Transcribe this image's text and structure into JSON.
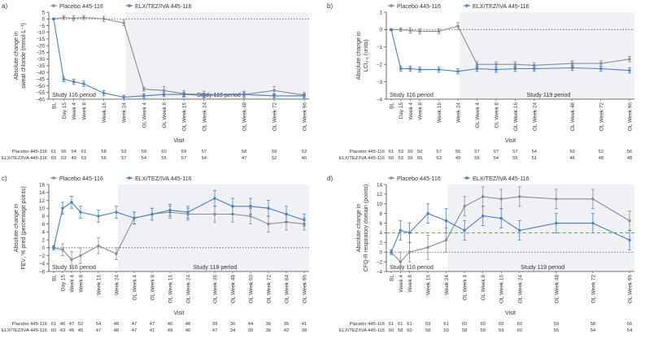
{
  "legend": {
    "placebo": "Placebo 445-116",
    "elx": "ELX/TEZ/IVA 445-116"
  },
  "colors": {
    "placebo": "#8c8c8c",
    "elx": "#4a7fc1",
    "shade": "#f0f1f5",
    "mcid": "#6aaa4a",
    "zero": "#555555"
  },
  "chart_data": [
    {
      "panel": "a)",
      "type": "line",
      "ylabel": [
        "Absolute change in",
        "sweat chloride (mmol·L⁻¹)"
      ],
      "xlabel": "Visit",
      "ylim": [
        -60,
        5
      ],
      "yticks": [
        5,
        0,
        -5,
        -10,
        -15,
        -20,
        -25,
        -30,
        -35,
        -40,
        -45,
        -50,
        -55,
        -60
      ],
      "categories": [
        "BL",
        "Day 15",
        "Week 4",
        "Week 8",
        "Week 16",
        "Week 24",
        "OL Week 4",
        "OL Week 8",
        "OL Week 16",
        "OL Week 24",
        "OL Week 48",
        "OL Week 72",
        "OL Week 96"
      ],
      "xpos": [
        0,
        1,
        2,
        3,
        5,
        7,
        9,
        11,
        13,
        15,
        19,
        22,
        25
      ],
      "xmax": 25,
      "shade_from": 7,
      "period_116": "Study 116 period",
      "period_119": "Study 119 period",
      "series": [
        {
          "key": "placebo",
          "name": "Placebo 445-116",
          "values": [
            0,
            1,
            0.5,
            1,
            0,
            -3,
            -52.5,
            -53.5,
            -56,
            -56.5,
            -56.5,
            -53.5,
            -57
          ],
          "err": [
            0.5,
            1.5,
            2,
            1.5,
            2,
            2,
            1.5,
            3,
            2.5,
            2.5,
            2.5,
            3,
            2
          ]
        },
        {
          "key": "elx",
          "name": "ELX/TEZ/IVA 445-116",
          "values": [
            0,
            -45,
            -47,
            -48.5,
            -55.5,
            -58.5,
            -57.5,
            -56.5,
            -56.5,
            -57,
            -56.5,
            -57.5,
            -57.5
          ],
          "err": [
            0.5,
            2,
            2,
            2,
            2,
            1.5,
            1.5,
            1.5,
            1.5,
            1.5,
            1.5,
            1.5,
            1.5
          ]
        }
      ],
      "n_table": {
        "rows": [
          {
            "label": "Placebo 445-116",
            "values": [
              "61",
              "56",
              "54",
              "61",
              "58",
              "53",
              "59",
              "60",
              "59",
              "57",
              "58",
              "59",
              "52"
            ]
          },
          {
            "label": "ELX/TEZ/IVA 445-116",
            "values": [
              "60",
              "53",
              "49",
              "53",
              "56",
              "57",
              "54",
              "55",
              "57",
              "54",
              "47",
              "52",
              "46"
            ]
          }
        ]
      }
    },
    {
      "panel": "b)",
      "type": "line",
      "ylabel": [
        "Absolute change in",
        "LCI₂.₅ (units)"
      ],
      "xlabel": "Visit",
      "ylim": [
        -4,
        1
      ],
      "yticks": [
        1,
        0,
        -1,
        -2,
        -3,
        -4
      ],
      "categories": [
        "BL",
        "Day 15",
        "Week 4",
        "Week 8",
        "Week 16",
        "Week 24",
        "OL Week 4",
        "OL Week 8",
        "OL Week 16",
        "OL Week 24",
        "OL Week 48",
        "OL Week 72",
        "OL Week 96"
      ],
      "xpos": [
        0,
        1,
        2,
        3,
        5,
        7,
        9,
        11,
        13,
        15,
        19,
        22,
        25
      ],
      "xmax": 25,
      "shade_from": 7,
      "period_116": "Study 116 period",
      "period_119": "Study 119 period",
      "series": [
        {
          "key": "placebo",
          "name": "Placebo 445-116",
          "values": [
            0,
            0,
            -0.05,
            -0.1,
            -0.1,
            0.2,
            -2.0,
            -2.0,
            -2.0,
            -2.05,
            -1.95,
            -1.95,
            -1.7
          ],
          "err": [
            0.05,
            0.1,
            0.15,
            0.15,
            0.15,
            0.2,
            0.15,
            0.15,
            0.15,
            0.15,
            0.15,
            0.15,
            0.15
          ]
        },
        {
          "key": "elx",
          "name": "ELX/TEZ/IVA 445-116",
          "values": [
            0,
            -2.25,
            -2.25,
            -2.3,
            -2.3,
            -2.4,
            -2.25,
            -2.3,
            -2.25,
            -2.25,
            -2.2,
            -2.25,
            -2.35
          ],
          "err": [
            0.05,
            0.15,
            0.15,
            0.15,
            0.15,
            0.15,
            0.15,
            0.15,
            0.15,
            0.15,
            0.15,
            0.15,
            0.15
          ]
        }
      ],
      "n_table": {
        "rows": [
          {
            "label": "Placebo 445-116",
            "values": [
              "61",
              "53",
              "50",
              "50",
              "57",
              "56",
              "57",
              "57",
              "57",
              "54",
              "50",
              "52",
              "56"
            ]
          },
          {
            "label": "ELX/TEZ/IVA 445-116",
            "values": [
              "60",
              "53",
              "56",
              "55",
              "53",
              "49",
              "56",
              "54",
              "55",
              "51",
              "46",
              "48",
              "48"
            ]
          }
        ]
      }
    },
    {
      "panel": "c)",
      "type": "line",
      "ylabel": [
        "Absolute change in",
        "FEV₁ % pred (percentage points)"
      ],
      "xlabel": "Visit",
      "ylim": [
        -6,
        16
      ],
      "yticks": [
        16,
        14,
        12,
        10,
        8,
        6,
        4,
        2,
        0,
        -2,
        -4,
        -6
      ],
      "categories": [
        "BL",
        "Day 15",
        "Week 4",
        "Week 8",
        "Week 16",
        "Week 24",
        "OL Week 4",
        "OL Week 8",
        "OL Week 16",
        "OL Week 24",
        "OL Week 36",
        "OL Week 48",
        "OL Week 60",
        "OL Week 72",
        "OL Week 84",
        "OL Week 96"
      ],
      "xpos": [
        0,
        1,
        2,
        3,
        5,
        7,
        9,
        11,
        13,
        15,
        18,
        20,
        22,
        24,
        26,
        28
      ],
      "xmax": 28,
      "shade_from": 7,
      "period_116": "Study 116 period",
      "period_119": "Study 119 period",
      "series": [
        {
          "key": "placebo",
          "name": "Placebo 445-116",
          "values": [
            0,
            -0.5,
            -3,
            -2,
            0.5,
            -1.5,
            7.5,
            8.5,
            9,
            8.5,
            8.5,
            8.5,
            8,
            6,
            6.5,
            6
          ],
          "err": [
            0.5,
            1.5,
            2,
            2,
            2,
            1.5,
            1.5,
            1.5,
            1.5,
            1.5,
            2,
            2,
            2,
            2,
            2,
            1.5
          ]
        },
        {
          "key": "elx",
          "name": "ELX/TEZ/IVA 445-116",
          "values": [
            0,
            10,
            11.5,
            9,
            8,
            9,
            7.5,
            8.5,
            9.5,
            9,
            12.5,
            10.5,
            10.5,
            10,
            8.5,
            7
          ],
          "err": [
            0.5,
            1.5,
            1.5,
            1.5,
            1.5,
            1.5,
            1.5,
            1.5,
            1.5,
            1.5,
            2,
            2,
            2,
            2,
            2,
            1.5
          ]
        }
      ],
      "n_table": {
        "rows": [
          {
            "label": "Placebo 445-116",
            "values": [
              "61",
              "46",
              "47",
              "52",
              "54",
              "48",
              "47",
              "47",
              "46",
              "48",
              "39",
              "36",
              "44",
              "36",
              "36",
              "41"
            ]
          },
          {
            "label": "ELX/TEZ/IVA 445-116",
            "values": [
              "60",
              "43",
              "46",
              "45",
              "47",
              "48",
              "47",
              "41",
              "49",
              "46",
              "47",
              "34",
              "39",
              "36",
              "42",
              "38"
            ]
          }
        ]
      }
    },
    {
      "panel": "d)",
      "type": "line",
      "ylabel": [
        "Absolute change in",
        "CFQ-R respiratory domain (points)"
      ],
      "xlabel": "Visit",
      "ylim": [
        -4,
        14
      ],
      "yticks": [
        14,
        12,
        10,
        8,
        6,
        4,
        2,
        0,
        -2,
        -4
      ],
      "mcid": 4,
      "categories": [
        "BL",
        "Week 4",
        "Week 8",
        "Week 16",
        "Week 24",
        "OL Week 4",
        "OL Week 8",
        "OL Week 16",
        "OL Week 24",
        "OL Week 48",
        "OL Week 72",
        "OL Week 96"
      ],
      "xpos": [
        0,
        1,
        2,
        4,
        6,
        8,
        10,
        12,
        14,
        18,
        22,
        26
      ],
      "xmax": 26,
      "shade_from": 6,
      "period_116": "Study 116 period",
      "period_119": "Study 119 period",
      "series": [
        {
          "key": "placebo",
          "name": "Placebo 445-116",
          "values": [
            0,
            -2,
            0,
            1,
            2.5,
            9.5,
            11.5,
            11,
            11.5,
            11,
            11,
            6.5
          ],
          "err": [
            0.5,
            2,
            2,
            2.5,
            2.5,
            2,
            2,
            2,
            2,
            2,
            2,
            2
          ]
        },
        {
          "key": "elx",
          "name": "ELX/TEZ/IVA 445-116",
          "values": [
            0,
            4.5,
            4,
            8,
            6.5,
            4.5,
            7.5,
            7,
            4.5,
            6,
            6,
            2.5
          ],
          "err": [
            0.5,
            2,
            2,
            2,
            2.5,
            2,
            2,
            2,
            2,
            2,
            2,
            2
          ]
        }
      ],
      "n_table": {
        "rows": [
          {
            "label": "Placebo 445-116",
            "values": [
              "61",
              "61",
              "61",
              "59",
              "61",
              "60",
              "60",
              "60",
              "60",
              "59",
              "58",
              "56"
            ]
          },
          {
            "label": "ELX/TEZ/IVA 445-116",
            "values": [
              "60",
              "58",
              "60",
              "58",
              "59",
              "58",
              "59",
              "59",
              "60",
              "55",
              "54",
              "54"
            ]
          }
        ]
      }
    }
  ]
}
